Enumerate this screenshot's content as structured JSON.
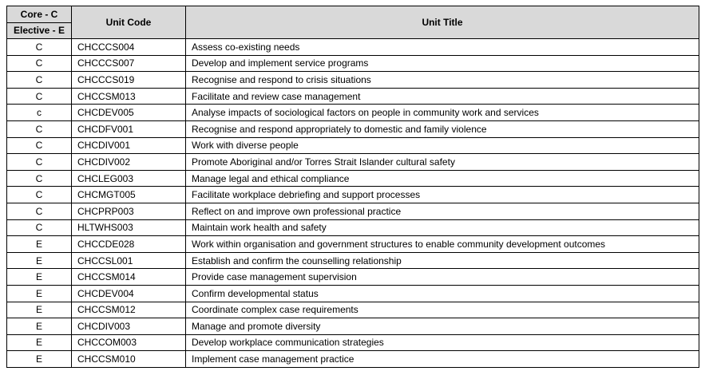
{
  "header": {
    "type_line1": "Core - C",
    "type_line2": "Elective - E",
    "unit_code": "Unit Code",
    "unit_title": "Unit Title"
  },
  "rows": [
    {
      "type": "C",
      "code": "CHCCCS004",
      "title": "Assess co-existing needs"
    },
    {
      "type": "C",
      "code": "CHCCCS007",
      "title": "Develop and implement service programs"
    },
    {
      "type": "C",
      "code": "CHCCCS019",
      "title": "Recognise and respond to crisis situations"
    },
    {
      "type": "C",
      "code": "CHCCSM013",
      "title": "Facilitate and review case management"
    },
    {
      "type": "c",
      "code": "CHCDEV005",
      "title": "Analyse impacts of sociological factors on people in community work and services"
    },
    {
      "type": "C",
      "code": "CHCDFV001",
      "title": "Recognise and respond appropriately to domestic and family violence"
    },
    {
      "type": "C",
      "code": "CHCDIV001",
      "title": "Work with diverse people"
    },
    {
      "type": "C",
      "code": "CHCDIV002",
      "title": "Promote Aboriginal and/or Torres Strait Islander cultural safety"
    },
    {
      "type": "C",
      "code": "CHCLEG003",
      "title": "Manage legal and ethical compliance"
    },
    {
      "type": "C",
      "code": "CHCMGT005",
      "title": "Facilitate workplace debriefing and support processes"
    },
    {
      "type": "C",
      "code": "CHCPRP003",
      "title": "Reflect on and improve own professional practice"
    },
    {
      "type": "C",
      "code": "HLTWHS003",
      "title": "Maintain work health and safety"
    },
    {
      "type": "E",
      "code": "CHCCDE028",
      "title": "Work within organisation and government structures to enable community development outcomes"
    },
    {
      "type": "E",
      "code": "CHCCSL001",
      "title": "Establish and confirm the counselling relationship"
    },
    {
      "type": "E",
      "code": "CHCCSM014",
      "title": "Provide case management supervision"
    },
    {
      "type": "E",
      "code": "CHCDEV004",
      "title": "Confirm developmental status"
    },
    {
      "type": "E",
      "code": "CHCCSM012",
      "title": "Coordinate complex case requirements"
    },
    {
      "type": "E",
      "code": "CHCDIV003",
      "title": "Manage and promote diversity"
    },
    {
      "type": "E",
      "code": "CHCCOM003",
      "title": "Develop workplace communication strategies"
    },
    {
      "type": "E",
      "code": "CHCCSM010",
      "title": "Implement case management practice"
    }
  ],
  "colors": {
    "header_bg": "#d9d9d9",
    "border": "#000000"
  }
}
